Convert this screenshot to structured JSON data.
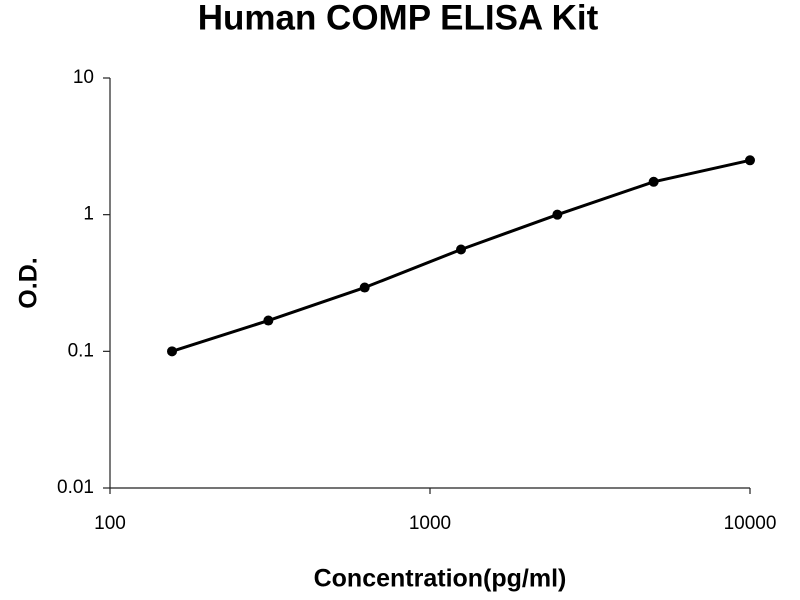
{
  "chart_data": {
    "type": "line",
    "title": "Human COMP ELISA Kit",
    "x_label": "Concentration(pg/ml)",
    "y_label": "O.D.",
    "x": [
      156.25,
      312.5,
      625,
      1250,
      2500,
      5000,
      10000
    ],
    "values": [
      0.1,
      0.168,
      0.293,
      0.556,
      1.0,
      1.74,
      2.5
    ],
    "color": "#000000",
    "xscale": "log",
    "yscale": "log",
    "xlim": [
      100,
      10000
    ],
    "xticks": [
      100,
      1000,
      10000
    ],
    "ylim": [
      0.01,
      10
    ],
    "yticks": [
      0.01,
      0.1,
      1,
      10
    ],
    "grid": false,
    "markers": true
  }
}
